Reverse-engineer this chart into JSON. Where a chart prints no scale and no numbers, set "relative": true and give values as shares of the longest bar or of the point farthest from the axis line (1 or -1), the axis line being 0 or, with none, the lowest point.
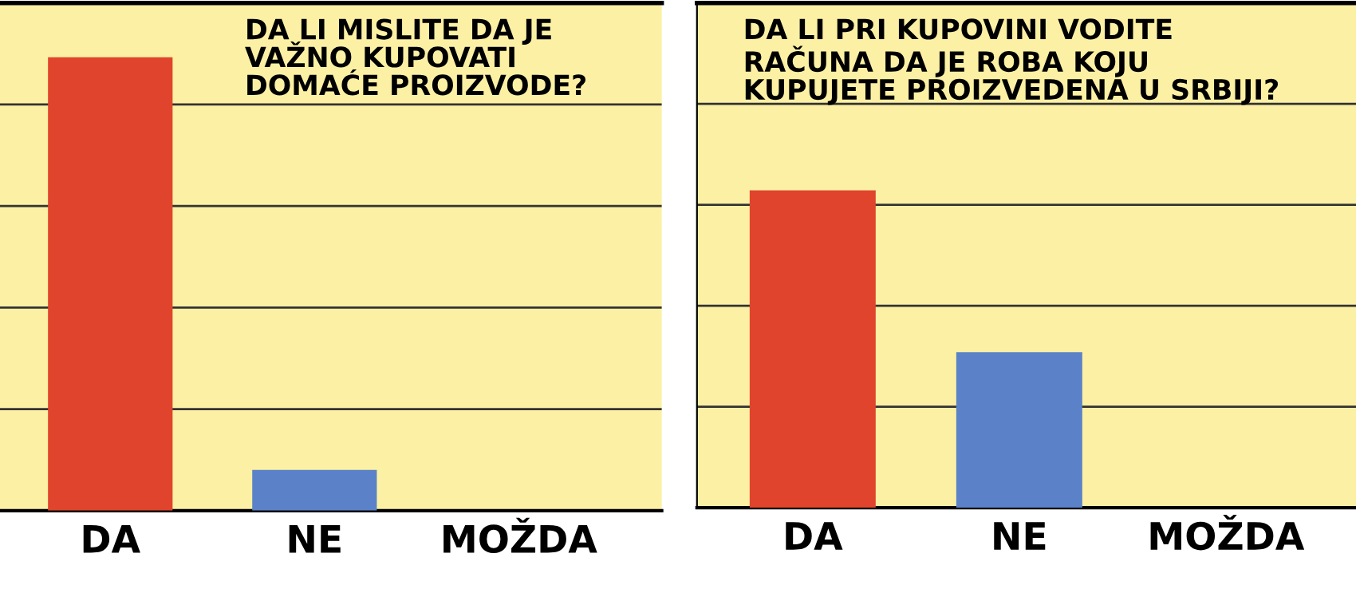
{
  "chart_data": [
    {
      "type": "bar",
      "title": "DA LI MISLITE DA JE\nVAŽNO KUPOVATI\nDOMAĆE PROIZVODE?",
      "categories": [
        "DA",
        "NE",
        "MOŽDA"
      ],
      "values": [
        1,
        0.09,
        0
      ],
      "colors": [
        "#e0442c",
        "#5b82c8",
        "#5b82c8"
      ],
      "relative": true,
      "grid": "y",
      "tick_labels": "x"
    },
    {
      "type": "bar",
      "title": "DA LI PRI KUPOVINI VODITE\nRAČUNA DA JE ROBA KOJU\nKUPUJETE PROIZVEDENA U SRBIJI?",
      "categories": [
        "DA",
        "NE",
        "MOŽDA"
      ],
      "values": [
        1,
        0.49,
        0
      ],
      "colors": [
        "#e0442c",
        "#5b82c8",
        "#5b82c8"
      ],
      "relative": true,
      "grid": "y",
      "tick_labels": "x"
    }
  ]
}
